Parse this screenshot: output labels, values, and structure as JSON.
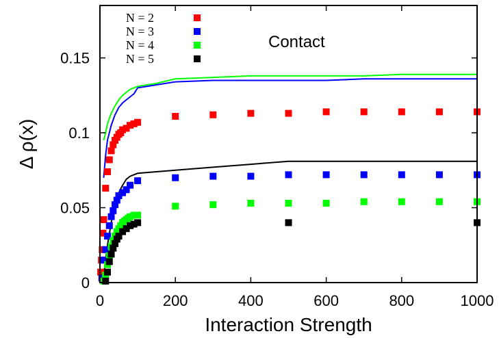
{
  "chart_data": {
    "type": "scatter",
    "title": "",
    "xlabel": "Interaction Strength",
    "ylabel": "Δ ρ(x)",
    "xlim": [
      0,
      1000
    ],
    "ylim": [
      0,
      0.185
    ],
    "xticks": [
      0,
      200,
      400,
      600,
      800,
      1000
    ],
    "xtick_labels": [
      "0",
      "200",
      "400",
      "600",
      "800",
      "1000"
    ],
    "yticks": [
      0,
      0.05,
      0.1,
      0.15
    ],
    "ytick_labels": [
      "0",
      "0.05",
      "0.1",
      "0.15"
    ],
    "annotation": "Contact",
    "legend_position": "top-left",
    "grid": false,
    "series": [
      {
        "name": "N = 2",
        "color": "#ff0000",
        "marker": "square",
        "points": [
          [
            2,
            0.007
          ],
          [
            4,
            0.015
          ],
          [
            6,
            0.022
          ],
          [
            8,
            0.033
          ],
          [
            10,
            0.042
          ],
          [
            15,
            0.063
          ],
          [
            20,
            0.074
          ],
          [
            25,
            0.082
          ],
          [
            30,
            0.088
          ],
          [
            35,
            0.092
          ],
          [
            40,
            0.095
          ],
          [
            45,
            0.097
          ],
          [
            50,
            0.099
          ],
          [
            55,
            0.1
          ],
          [
            60,
            0.102
          ],
          [
            70,
            0.103
          ],
          [
            80,
            0.105
          ],
          [
            90,
            0.106
          ],
          [
            100,
            0.107
          ],
          [
            200,
            0.111
          ],
          [
            300,
            0.112
          ],
          [
            400,
            0.113
          ],
          [
            500,
            0.113
          ],
          [
            600,
            0.114
          ],
          [
            700,
            0.114
          ],
          [
            800,
            0.114
          ],
          [
            900,
            0.114
          ],
          [
            1000,
            0.114
          ]
        ]
      },
      {
        "name": "N = 3",
        "color": "#0000ff",
        "marker": "square",
        "points": [
          [
            5,
            0.003
          ],
          [
            10,
            0.015
          ],
          [
            15,
            0.022
          ],
          [
            20,
            0.031
          ],
          [
            25,
            0.038
          ],
          [
            30,
            0.044
          ],
          [
            35,
            0.048
          ],
          [
            40,
            0.052
          ],
          [
            45,
            0.055
          ],
          [
            50,
            0.058
          ],
          [
            60,
            0.06
          ],
          [
            70,
            0.062
          ],
          [
            80,
            0.065
          ],
          [
            100,
            0.068
          ],
          [
            200,
            0.07
          ],
          [
            300,
            0.071
          ],
          [
            400,
            0.071
          ],
          [
            500,
            0.072
          ],
          [
            600,
            0.072
          ],
          [
            700,
            0.072
          ],
          [
            800,
            0.072
          ],
          [
            900,
            0.072
          ],
          [
            1000,
            0.072
          ]
        ]
      },
      {
        "name": "N = 4",
        "color": "#00ff00",
        "marker": "square",
        "points": [
          [
            10,
            0.001
          ],
          [
            15,
            0.005
          ],
          [
            20,
            0.012
          ],
          [
            25,
            0.018
          ],
          [
            30,
            0.024
          ],
          [
            35,
            0.028
          ],
          [
            40,
            0.031
          ],
          [
            45,
            0.034
          ],
          [
            50,
            0.036
          ],
          [
            55,
            0.038
          ],
          [
            60,
            0.04
          ],
          [
            65,
            0.041
          ],
          [
            70,
            0.042
          ],
          [
            75,
            0.043
          ],
          [
            80,
            0.044
          ],
          [
            90,
            0.045
          ],
          [
            100,
            0.045
          ],
          [
            200,
            0.051
          ],
          [
            300,
            0.052
          ],
          [
            400,
            0.053
          ],
          [
            500,
            0.053
          ],
          [
            600,
            0.053
          ],
          [
            700,
            0.054
          ],
          [
            800,
            0.054
          ],
          [
            900,
            0.054
          ],
          [
            1000,
            0.054
          ]
        ]
      },
      {
        "name": "N = 5",
        "color": "#000000",
        "marker": "square",
        "points": [
          [
            15,
            0.001
          ],
          [
            20,
            0.007
          ],
          [
            25,
            0.014
          ],
          [
            30,
            0.019
          ],
          [
            35,
            0.023
          ],
          [
            40,
            0.026
          ],
          [
            45,
            0.029
          ],
          [
            50,
            0.031
          ],
          [
            60,
            0.034
          ],
          [
            70,
            0.036
          ],
          [
            80,
            0.038
          ],
          [
            90,
            0.039
          ],
          [
            100,
            0.04
          ],
          [
            500,
            0.04
          ],
          [
            1000,
            0.04
          ]
        ]
      }
    ],
    "lines": [
      {
        "color": "#00ff00",
        "points": [
          [
            10,
            0.095
          ],
          [
            15,
            0.1
          ],
          [
            20,
            0.106
          ],
          [
            30,
            0.113
          ],
          [
            40,
            0.118
          ],
          [
            50,
            0.122
          ],
          [
            60,
            0.125
          ],
          [
            70,
            0.127
          ],
          [
            80,
            0.129
          ],
          [
            90,
            0.13
          ],
          [
            100,
            0.131
          ],
          [
            150,
            0.133
          ],
          [
            200,
            0.136
          ],
          [
            300,
            0.137
          ],
          [
            400,
            0.138
          ],
          [
            500,
            0.138
          ],
          [
            600,
            0.138
          ],
          [
            700,
            0.138
          ],
          [
            800,
            0.139
          ],
          [
            900,
            0.139
          ],
          [
            1000,
            0.139
          ]
        ]
      },
      {
        "color": "#0000ff",
        "points": [
          [
            10,
            0.07
          ],
          [
            15,
            0.085
          ],
          [
            20,
            0.095
          ],
          [
            30,
            0.105
          ],
          [
            40,
            0.112
          ],
          [
            50,
            0.117
          ],
          [
            60,
            0.12
          ],
          [
            70,
            0.122
          ],
          [
            80,
            0.124
          ],
          [
            90,
            0.126
          ],
          [
            100,
            0.13
          ],
          [
            150,
            0.132
          ],
          [
            200,
            0.134
          ],
          [
            300,
            0.135
          ],
          [
            400,
            0.135
          ],
          [
            500,
            0.135
          ],
          [
            600,
            0.135
          ],
          [
            700,
            0.136
          ],
          [
            800,
            0.136
          ],
          [
            900,
            0.136
          ],
          [
            1000,
            0.136
          ]
        ]
      },
      {
        "color": "#000000",
        "points": [
          [
            10,
            0.005
          ],
          [
            15,
            0.015
          ],
          [
            20,
            0.025
          ],
          [
            30,
            0.04
          ],
          [
            40,
            0.052
          ],
          [
            50,
            0.06
          ],
          [
            60,
            0.065
          ],
          [
            70,
            0.069
          ],
          [
            80,
            0.071
          ],
          [
            90,
            0.072
          ],
          [
            100,
            0.073
          ],
          [
            200,
            0.075
          ],
          [
            300,
            0.077
          ],
          [
            400,
            0.079
          ],
          [
            500,
            0.081
          ],
          [
            600,
            0.081
          ],
          [
            700,
            0.081
          ],
          [
            800,
            0.081
          ],
          [
            900,
            0.081
          ],
          [
            1000,
            0.081
          ]
        ]
      }
    ]
  }
}
